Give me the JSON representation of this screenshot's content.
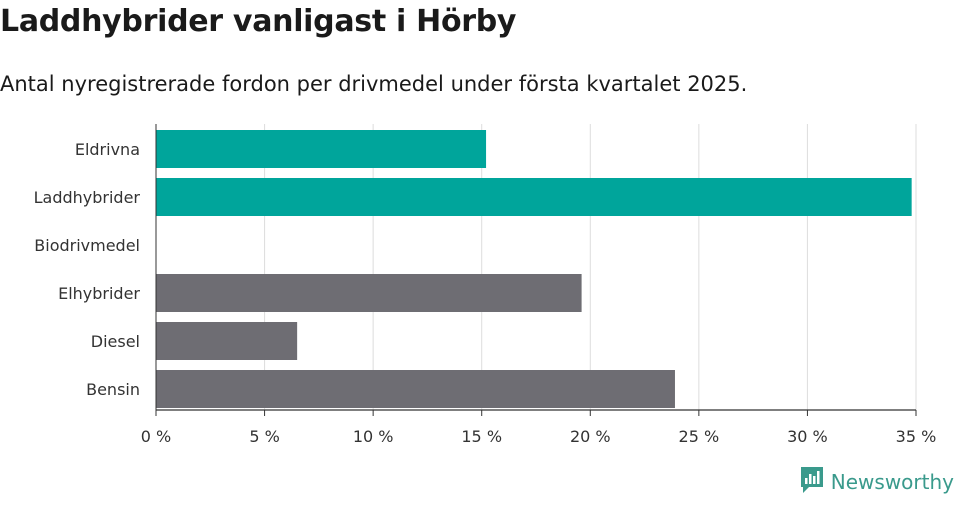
{
  "title": "Laddhybrider vanligast i Hörby",
  "subtitle": "Antal nyregistrerade fordon per drivmedel under första kvartalet 2025.",
  "brand": {
    "name": "Newsworthy",
    "color": "#3a9a8c",
    "icon": "newsworthy-logo-icon"
  },
  "colors": {
    "highlight": "#00a59b",
    "default": "#6e6d73",
    "grid": "#dddddd",
    "axis": "#333333"
  },
  "chart_data": {
    "type": "bar",
    "orientation": "horizontal",
    "categories": [
      "Eldrivna",
      "Laddhybrider",
      "Biodrivmedel",
      "Elhybrider",
      "Diesel",
      "Bensin"
    ],
    "values": [
      15.2,
      34.8,
      0,
      19.6,
      6.5,
      23.9
    ],
    "highlighted": [
      true,
      true,
      false,
      false,
      false,
      false
    ],
    "xlim": [
      0,
      35
    ],
    "xticks": [
      0,
      5,
      10,
      15,
      20,
      25,
      30,
      35
    ],
    "xtick_labels": [
      "0 %",
      "5 %",
      "10 %",
      "15 %",
      "20 %",
      "25 %",
      "30 %",
      "35 %"
    ],
    "grid": true,
    "legend": "none"
  }
}
